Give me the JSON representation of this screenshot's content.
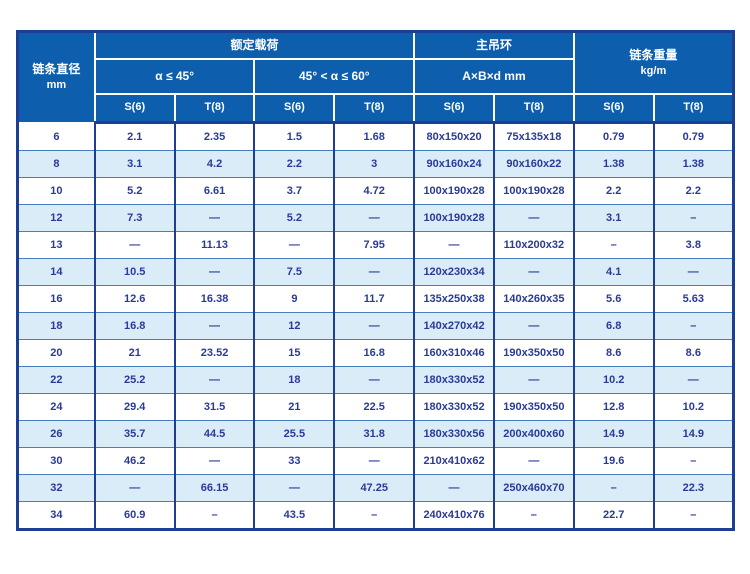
{
  "table": {
    "header": {
      "col_diameter_line1": "链条直径",
      "col_diameter_line2": "mm",
      "group_rated_load": "额定载荷",
      "angle_le_45": "α ≤ 45°",
      "angle_45_60": "45° < α ≤ 60°",
      "group_main_ring": "主吊环",
      "ring_dims": "A×B×d  mm",
      "chain_weight_line1": "链条重量",
      "chain_weight_line2": "kg/m",
      "grade_s": "S(6)",
      "grade_t": "T(8)"
    },
    "rows": [
      [
        "6",
        "2.1",
        "2.35",
        "1.5",
        "1.68",
        "80x150x20",
        "75x135x18",
        "0.79",
        "0.79"
      ],
      [
        "8",
        "3.1",
        "4.2",
        "2.2",
        "3",
        "90x160x24",
        "90x160x22",
        "1.38",
        "1.38"
      ],
      [
        "10",
        "5.2",
        "6.61",
        "3.7",
        "4.72",
        "100x190x28",
        "100x190x28",
        "2.2",
        "2.2"
      ],
      [
        "12",
        "7.3",
        "—",
        "5.2",
        "—",
        "100x190x28",
        "—",
        "3.1",
        "–"
      ],
      [
        "13",
        "—",
        "11.13",
        "—",
        "7.95",
        "—",
        "110x200x32",
        "–",
        "3.8"
      ],
      [
        "14",
        "10.5",
        "—",
        "7.5",
        "—",
        "120x230x34",
        "—",
        "4.1",
        "—"
      ],
      [
        "16",
        "12.6",
        "16.38",
        "9",
        "11.7",
        "135x250x38",
        "140x260x35",
        "5.6",
        "5.63"
      ],
      [
        "18",
        "16.8",
        "—",
        "12",
        "—",
        "140x270x42",
        "—",
        "6.8",
        "–"
      ],
      [
        "20",
        "21",
        "23.52",
        "15",
        "16.8",
        "160x310x46",
        "190x350x50",
        "8.6",
        "8.6"
      ],
      [
        "22",
        "25.2",
        "—",
        "18",
        "—",
        "180x330x52",
        "—",
        "10.2",
        "—"
      ],
      [
        "24",
        "29.4",
        "31.5",
        "21",
        "22.5",
        "180x330x52",
        "190x350x50",
        "12.8",
        "10.2"
      ],
      [
        "26",
        "35.7",
        "44.5",
        "25.5",
        "31.8",
        "180x330x56",
        "200x400x60",
        "14.9",
        "14.9"
      ],
      [
        "30",
        "46.2",
        "—",
        "33",
        "—",
        "210x410x62",
        "—",
        "19.6",
        "–"
      ],
      [
        "32",
        "—",
        "66.15",
        "—",
        "47.25",
        "—",
        "250x460x70",
        "–",
        "22.3"
      ],
      [
        "34",
        "60.9",
        "–",
        "43.5",
        "–",
        "240x410x76",
        "–",
        "22.7",
        "–"
      ]
    ],
    "colors": {
      "header_blue": "#0d5fae",
      "border_navy": "#1c3f94",
      "stripe_blue": "#daecf8",
      "row_line_blue": "#4a7dbe",
      "text_ink": "#2b3a96"
    }
  }
}
